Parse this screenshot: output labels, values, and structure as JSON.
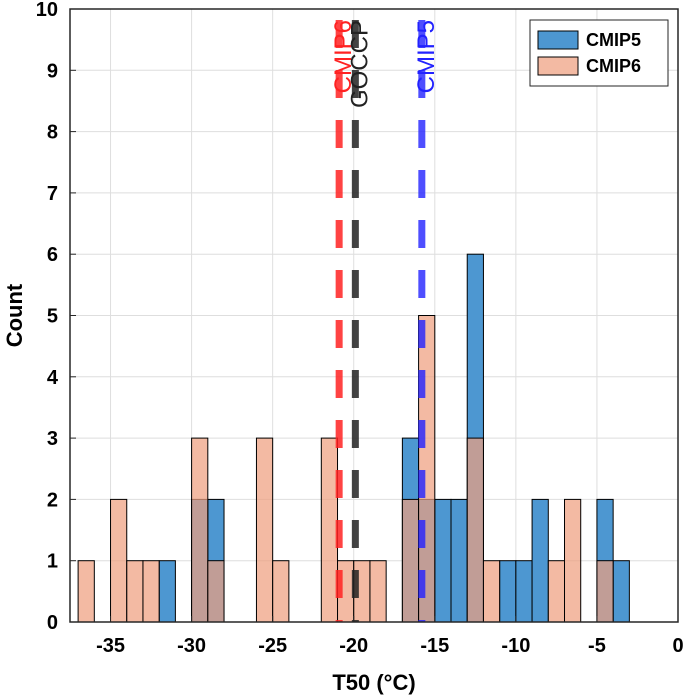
{
  "chart_data": {
    "type": "bar",
    "title": "",
    "xlabel": "T50 (°C)",
    "ylabel": "Count",
    "xlim": [
      -37.5,
      0
    ],
    "ylim": [
      0,
      10
    ],
    "bin_width": 1,
    "xticks": [
      -35,
      -30,
      -25,
      -20,
      -15,
      -10,
      -5,
      0
    ],
    "xtick_labels": [
      "-35",
      "-30",
      "-25",
      "-20",
      "-15",
      "-10",
      "-5",
      "0"
    ],
    "yticks": [
      0,
      1,
      2,
      3,
      4,
      5,
      6,
      7,
      8,
      9,
      10
    ],
    "ytick_labels": [
      "0",
      "1",
      "2",
      "3",
      "4",
      "5",
      "6",
      "7",
      "8",
      "9",
      "10"
    ],
    "grid": true,
    "legend_position": "top-right",
    "series": [
      {
        "name": "CMIP5",
        "color": "#4d97d1",
        "bins": [
          {
            "left": -32,
            "count": 1
          },
          {
            "left": -30,
            "count": 2
          },
          {
            "left": -29,
            "count": 2
          },
          {
            "left": -17,
            "count": 3
          },
          {
            "left": -16,
            "count": 2
          },
          {
            "left": -15,
            "count": 2
          },
          {
            "left": -14,
            "count": 2
          },
          {
            "left": -13,
            "count": 6
          },
          {
            "left": -11,
            "count": 1
          },
          {
            "left": -10,
            "count": 1
          },
          {
            "left": -9,
            "count": 2
          },
          {
            "left": -5,
            "count": 2
          },
          {
            "left": -4,
            "count": 1
          }
        ]
      },
      {
        "name": "CMIP6",
        "color": "#eea080",
        "bins": [
          {
            "left": -37,
            "count": 1
          },
          {
            "left": -35,
            "count": 2
          },
          {
            "left": -34,
            "count": 1
          },
          {
            "left": -33,
            "count": 1
          },
          {
            "left": -30,
            "count": 3
          },
          {
            "left": -29,
            "count": 1
          },
          {
            "left": -26,
            "count": 3
          },
          {
            "left": -25,
            "count": 1
          },
          {
            "left": -22,
            "count": 3
          },
          {
            "left": -21,
            "count": 1
          },
          {
            "left": -20,
            "count": 1
          },
          {
            "left": -19,
            "count": 1
          },
          {
            "left": -17,
            "count": 2
          },
          {
            "left": -16,
            "count": 5
          },
          {
            "left": -13,
            "count": 3
          },
          {
            "left": -12,
            "count": 1
          },
          {
            "left": -8,
            "count": 1
          },
          {
            "left": -7,
            "count": 2
          },
          {
            "left": -5,
            "count": 1
          }
        ]
      }
    ],
    "reference_lines": [
      {
        "name": "CMIP6",
        "x": -20.9,
        "color": "#ff2222",
        "opacity": 0.85
      },
      {
        "name": "GOCCP",
        "x": -19.9,
        "color": "#222222",
        "opacity": 0.85
      },
      {
        "name": "CMIP5",
        "x": -15.8,
        "color": "#2222ff",
        "opacity": 0.8
      }
    ]
  }
}
